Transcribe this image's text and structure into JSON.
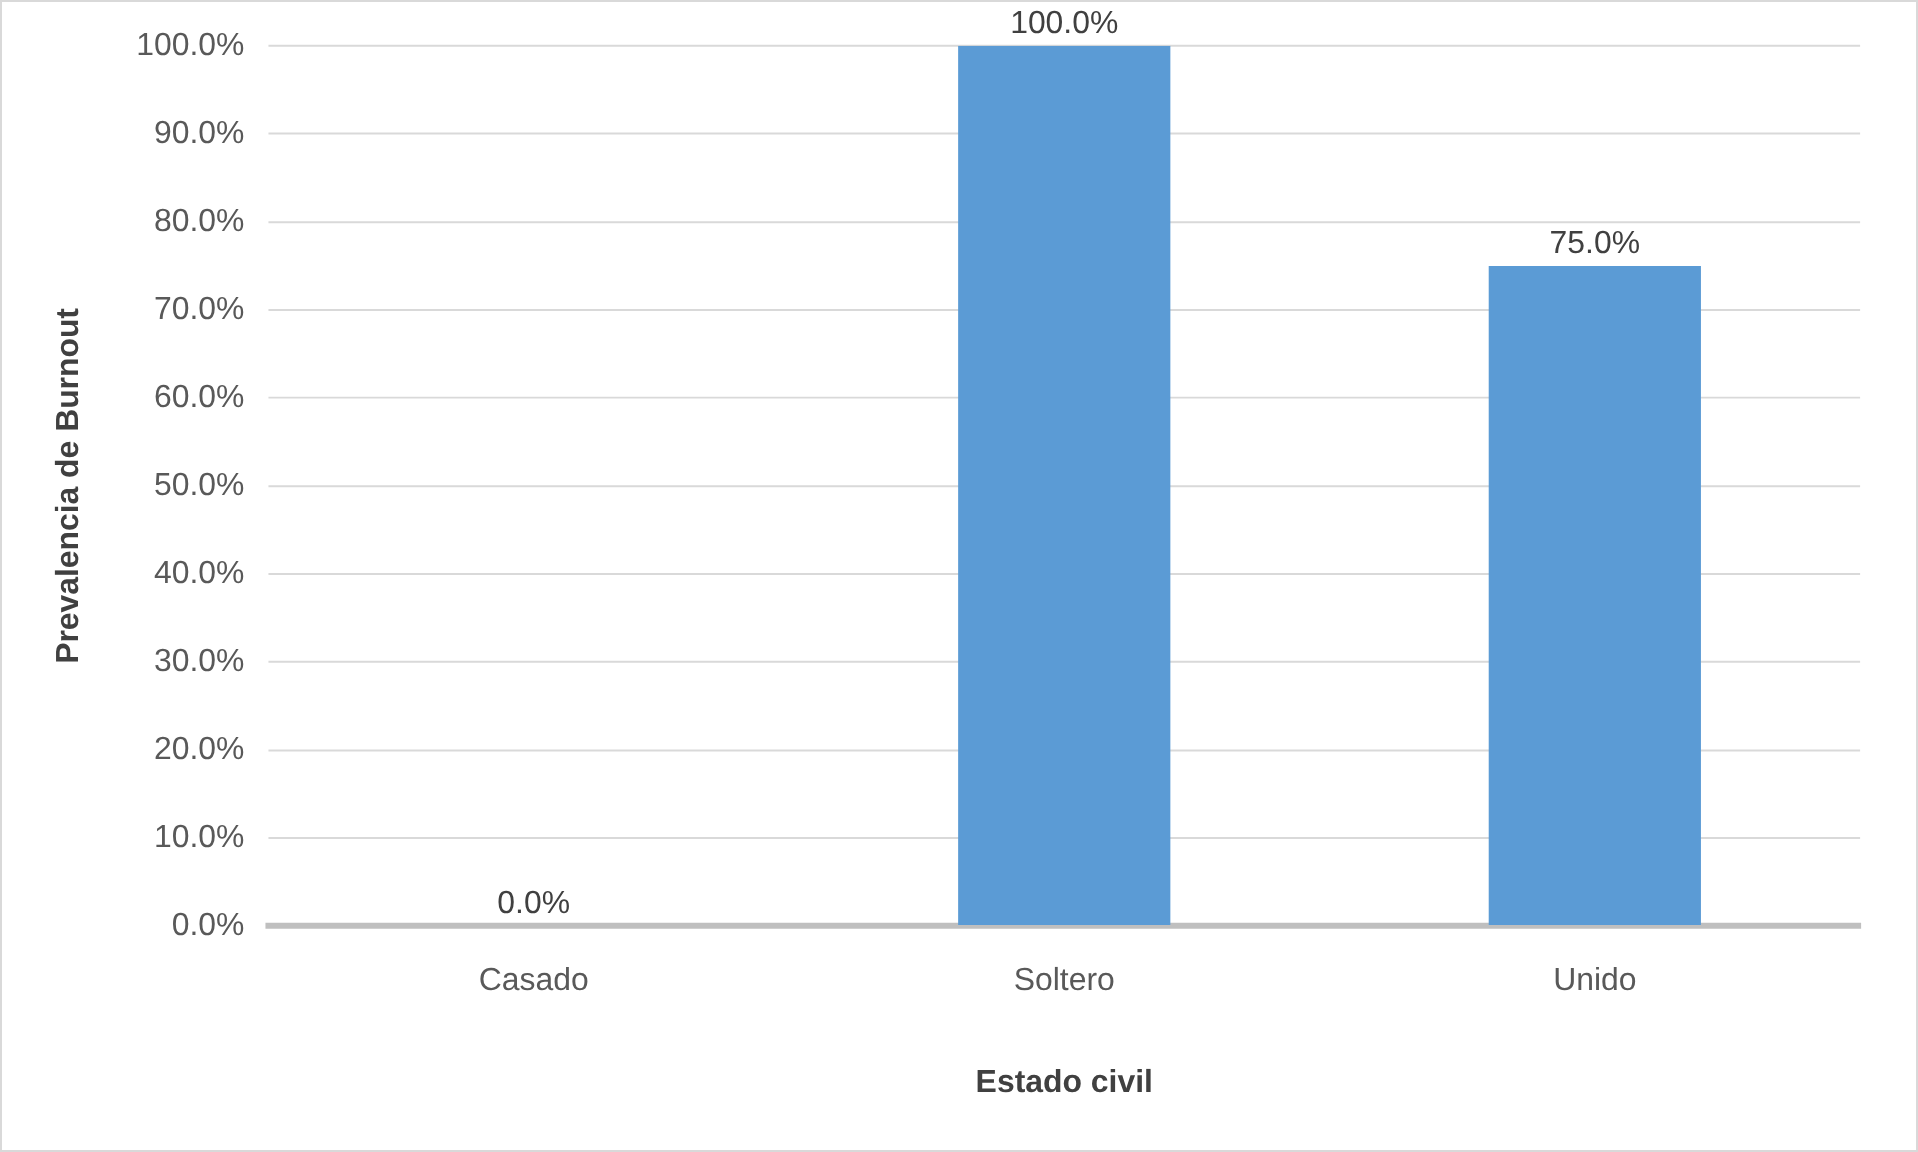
{
  "chart_data": {
    "type": "bar",
    "xlabel": "Estado civil",
    "ylabel": "Prevalencia de Burnout",
    "categories": [
      "Casado",
      "Soltero",
      "Unido"
    ],
    "values": [
      0,
      100,
      75
    ],
    "color": "#5b9bd5",
    "value_labels": [
      "0.0%",
      "100.0%",
      "75.0%"
    ],
    "ylim": [
      0,
      100
    ],
    "yticks": [
      {
        "value": 0,
        "label": "0.0%"
      },
      {
        "value": 10,
        "label": "10.0%"
      },
      {
        "value": 20,
        "label": "20.0%"
      },
      {
        "value": 30,
        "label": "30.0%"
      },
      {
        "value": 40,
        "label": "40.0%"
      },
      {
        "value": 50,
        "label": "50.0%"
      },
      {
        "value": 60,
        "label": "60.0%"
      },
      {
        "value": 70,
        "label": "70.0%"
      },
      {
        "value": 80,
        "label": "80.0%"
      },
      {
        "value": 90,
        "label": "90.0%"
      },
      {
        "value": 100,
        "label": "100.0%"
      }
    ],
    "grid": "y",
    "legend": false
  }
}
